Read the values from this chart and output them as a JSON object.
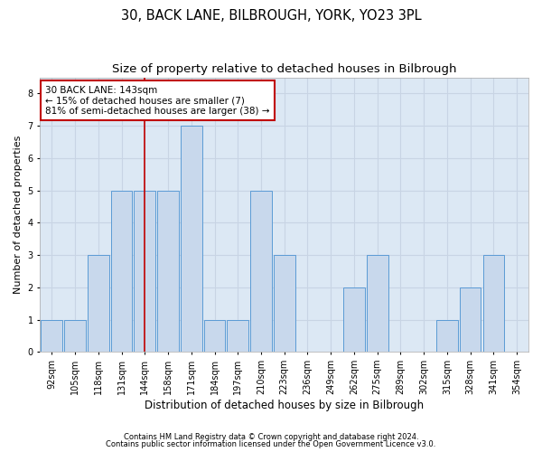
{
  "title1": "30, BACK LANE, BILBROUGH, YORK, YO23 3PL",
  "title2": "Size of property relative to detached houses in Bilbrough",
  "xlabel": "Distribution of detached houses by size in Bilbrough",
  "ylabel": "Number of detached properties",
  "footnote1": "Contains HM Land Registry data © Crown copyright and database right 2024.",
  "footnote2": "Contains public sector information licensed under the Open Government Licence v3.0.",
  "categories": [
    "92sqm",
    "105sqm",
    "118sqm",
    "131sqm",
    "144sqm",
    "158sqm",
    "171sqm",
    "184sqm",
    "197sqm",
    "210sqm",
    "223sqm",
    "236sqm",
    "249sqm",
    "262sqm",
    "275sqm",
    "289sqm",
    "302sqm",
    "315sqm",
    "328sqm",
    "341sqm",
    "354sqm"
  ],
  "values": [
    1,
    1,
    3,
    5,
    5,
    5,
    7,
    1,
    1,
    5,
    3,
    0,
    0,
    2,
    3,
    0,
    0,
    1,
    2,
    3,
    0
  ],
  "bar_color": "#c8d8ec",
  "bar_edge_color": "#5b9bd5",
  "highlight_bar_index": 4,
  "highlight_line_color": "#c00000",
  "annotation_text": "30 BACK LANE: 143sqm\n← 15% of detached houses are smaller (7)\n81% of semi-detached houses are larger (38) →",
  "annotation_box_color": "#ffffff",
  "annotation_box_edge_color": "#c00000",
  "ylim": [
    0,
    8.5
  ],
  "yticks": [
    0,
    1,
    2,
    3,
    4,
    5,
    6,
    7,
    8
  ],
  "grid_color": "#c8d4e4",
  "background_color": "#dce8f4",
  "title1_fontsize": 10.5,
  "title2_fontsize": 9.5,
  "xlabel_fontsize": 8.5,
  "ylabel_fontsize": 8,
  "tick_fontsize": 7,
  "annotation_fontsize": 7.5,
  "footnote_fontsize": 6
}
